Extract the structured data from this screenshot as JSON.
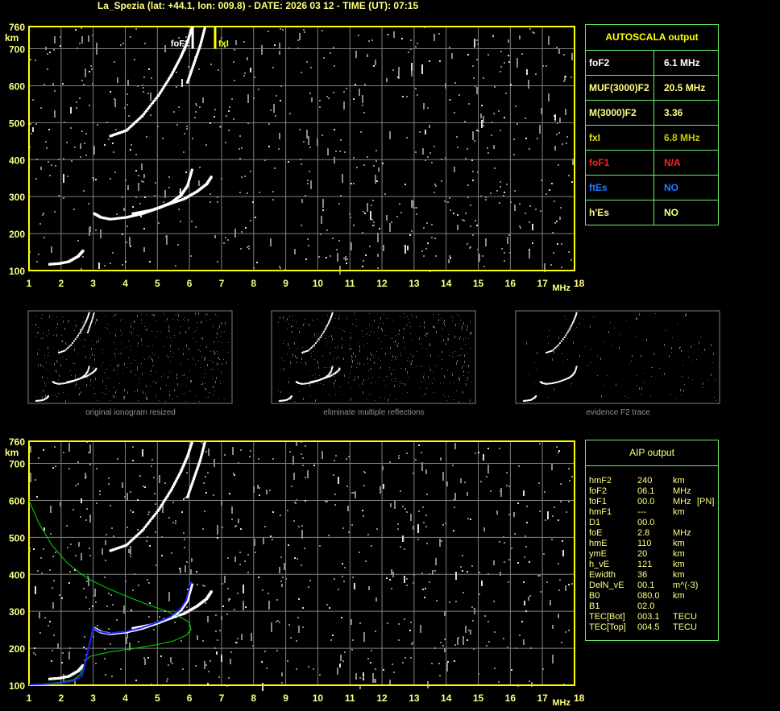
{
  "header": {
    "title": "La_Spezia (lat: +44.1, lon: 009.8) - DATE: 2026 03 12 - TIME (UT): 07:15"
  },
  "colors": {
    "axis": "#ffff00",
    "grid": "#808080",
    "label": "#ffff80",
    "panel_border": "#66ee66",
    "profile": "#00dd00",
    "fit": "#2020ff"
  },
  "autoscala": {
    "title": "AUTOSCALA output",
    "rows": [
      {
        "key": "foF2",
        "value": "6.1 MHz",
        "color": "#ffffff"
      },
      {
        "key": "MUF(3000)F2",
        "value": "20.5 MHz",
        "color": "#ffff80"
      },
      {
        "key": "M(3000)F2",
        "value": "3.36",
        "color": "#ffff80"
      },
      {
        "key": "fxI",
        "value": "6.8 MHz",
        "color": "#e0e000",
        "value_color": "#c8c800"
      },
      {
        "key": "foF1",
        "value": "N/A",
        "color": "#ff2020"
      },
      {
        "key": "ftEs",
        "value": "NO",
        "color": "#1e7bff"
      },
      {
        "key": "h'Es",
        "value": "NO",
        "color": "#ffff80"
      }
    ]
  },
  "aip": {
    "title": "AIP output",
    "rows": [
      [
        "hmF2",
        "240",
        "km",
        ""
      ],
      [
        "foF2",
        "06.1",
        "MHz",
        ""
      ],
      [
        "foF1",
        "00.0",
        "MHz",
        "[PN]"
      ],
      [
        "hmF1",
        "---",
        "km",
        ""
      ],
      [
        "D1",
        "00.0",
        "",
        ""
      ],
      [
        "foE",
        "2.8",
        "MHz",
        ""
      ],
      [
        "hmE",
        "110",
        "km",
        ""
      ],
      [
        "ymE",
        "20",
        "km",
        ""
      ],
      [
        "h_vE",
        "121",
        "km",
        ""
      ],
      [
        "Ewidth",
        "36",
        "km",
        ""
      ],
      [
        "DelN_vE",
        "00.1",
        "m^(-3)",
        ""
      ],
      [
        "B0",
        "080.0",
        "km",
        ""
      ],
      [
        "B1",
        "02.0",
        "",
        ""
      ],
      [
        "TEC[Bot]",
        "003.1",
        "TECU",
        ""
      ],
      [
        "TEC[Top]",
        "004.5",
        "TECU",
        ""
      ]
    ]
  },
  "thumbnails": [
    {
      "caption": "original ionogram resized"
    },
    {
      "caption": "eliminate multiple reflections"
    },
    {
      "caption": "evidence F2 trace"
    }
  ],
  "chart_data": [
    {
      "type": "scatter",
      "title": "",
      "xlabel": "MHz",
      "ylabel": "km",
      "xlim": [
        1,
        18
      ],
      "ylim": [
        100,
        760
      ],
      "xticks": [
        "1",
        "2",
        "3",
        "4",
        "5",
        "6",
        "7",
        "8",
        "9",
        "10",
        "11",
        "12",
        "13",
        "14",
        "15",
        "16",
        "17",
        "18"
      ],
      "yticks": [
        "100",
        "200",
        "300",
        "400",
        "500",
        "600",
        "700",
        "760"
      ],
      "grid": true,
      "markers": [
        {
          "label": "foF2",
          "x": 6.1,
          "color": "#ffffff"
        },
        {
          "label": "fxI",
          "x": 6.8,
          "color": "#ffff00"
        }
      ],
      "series": [
        {
          "x": [
            3.0,
            3.2,
            3.5,
            4.0,
            4.5,
            5.0,
            5.4,
            5.7,
            5.9,
            6.05
          ],
          "y": [
            255,
            245,
            240,
            245,
            255,
            270,
            285,
            305,
            330,
            375
          ]
        },
        {
          "x": [
            4.2,
            4.8,
            5.3,
            5.8,
            6.2,
            6.5,
            6.65
          ],
          "y": [
            255,
            265,
            280,
            295,
            315,
            335,
            355
          ]
        },
        {
          "x": [
            3.5,
            4.0,
            4.5,
            5.0,
            5.4,
            5.7,
            5.9,
            6.05
          ],
          "y": [
            465,
            480,
            520,
            575,
            630,
            680,
            720,
            760
          ]
        },
        {
          "x": [
            5.9,
            6.1,
            6.3,
            6.45
          ],
          "y": [
            610,
            660,
            710,
            760
          ]
        },
        {
          "x": [
            1.6,
            1.9,
            2.2,
            2.5,
            2.65
          ],
          "y": [
            118,
            120,
            125,
            140,
            155
          ]
        }
      ]
    },
    {
      "type": "line",
      "title": "",
      "xlabel": "MHz",
      "ylabel": "km",
      "xlim": [
        1,
        18
      ],
      "ylim": [
        100,
        760
      ],
      "xticks": [
        "1",
        "2",
        "3",
        "4",
        "5",
        "6",
        "7",
        "8",
        "9",
        "10",
        "11",
        "12",
        "13",
        "14",
        "15",
        "16",
        "17",
        "18"
      ],
      "yticks": [
        "100",
        "200",
        "300",
        "400",
        "500",
        "600",
        "700",
        "760"
      ],
      "grid": true,
      "series": [
        {
          "name": "",
          "color": "#00dd00",
          "x": [
            1.0,
            1.3,
            1.7,
            2.2,
            2.8,
            3.5,
            4.2,
            4.8,
            5.3,
            5.7,
            6.0,
            6.05,
            5.9,
            5.5,
            5.0,
            4.3,
            3.5,
            2.9,
            2.75,
            2.7,
            2.6,
            2.4,
            2.0,
            1.5,
            1.0
          ],
          "y": [
            600,
            540,
            480,
            430,
            390,
            360,
            335,
            315,
            300,
            285,
            270,
            250,
            235,
            220,
            210,
            200,
            190,
            178,
            165,
            150,
            130,
            115,
            108,
            104,
            102
          ]
        },
        {
          "name": "",
          "color": "#2020ff",
          "x": [
            1.0,
            1.5,
            2.0,
            2.4,
            2.65,
            2.75,
            3.0,
            3.2,
            3.5,
            4.0,
            4.5,
            5.0,
            5.4,
            5.7,
            5.9,
            6.05
          ],
          "y": [
            102,
            103,
            106,
            112,
            125,
            160,
            255,
            245,
            240,
            245,
            255,
            270,
            285,
            305,
            330,
            380
          ]
        }
      ]
    }
  ]
}
